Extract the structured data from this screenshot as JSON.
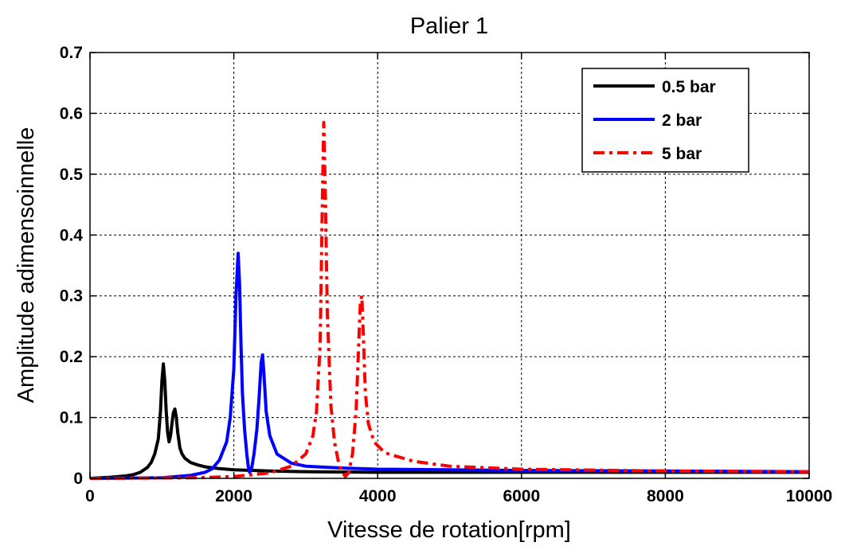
{
  "chart_data": {
    "type": "line",
    "title": "Palier 1",
    "xlabel": "Vitesse de rotation[rpm]",
    "ylabel": "Amplitude adimensoinnelle",
    "xlim": [
      0,
      10000
    ],
    "ylim": [
      0,
      0.7
    ],
    "xticks": [
      0,
      2000,
      4000,
      6000,
      8000,
      10000
    ],
    "yticks": [
      0,
      0.1,
      0.2,
      0.3,
      0.4,
      0.5,
      0.6,
      0.7
    ],
    "xtick_labels": [
      "0",
      "2000",
      "4000",
      "6000",
      "8000",
      "10000"
    ],
    "ytick_labels": [
      "0",
      "0.1",
      "0.2",
      "0.3",
      "0.4",
      "0.5",
      "0.6",
      "0.7"
    ],
    "grid": true,
    "legend_position": "top-right",
    "series": [
      {
        "name": "0.5 bar",
        "color": "#000000",
        "style": "solid",
        "x": [
          0,
          300,
          500,
          600,
          700,
          800,
          850,
          900,
          950,
          980,
          1000,
          1020,
          1040,
          1060,
          1080,
          1100,
          1120,
          1140,
          1160,
          1180,
          1200,
          1220,
          1250,
          1280,
          1320,
          1400,
          1500,
          1600,
          1800,
          2000,
          2500,
          3000,
          4000,
          6000,
          8000,
          10000
        ],
        "y": [
          0,
          0.002,
          0.004,
          0.006,
          0.01,
          0.018,
          0.026,
          0.04,
          0.065,
          0.11,
          0.16,
          0.188,
          0.16,
          0.11,
          0.075,
          0.06,
          0.07,
          0.09,
          0.108,
          0.114,
          0.1,
          0.075,
          0.05,
          0.04,
          0.033,
          0.026,
          0.022,
          0.019,
          0.016,
          0.014,
          0.012,
          0.011,
          0.01,
          0.01,
          0.01,
          0.01
        ]
      },
      {
        "name": "2 bar",
        "color": "#0000ff",
        "style": "solid",
        "x": [
          0,
          1000,
          1400,
          1600,
          1700,
          1800,
          1900,
          1950,
          2000,
          2030,
          2060,
          2080,
          2100,
          2120,
          2150,
          2180,
          2200,
          2220,
          2250,
          2280,
          2320,
          2350,
          2380,
          2400,
          2420,
          2450,
          2500,
          2600,
          2800,
          3000,
          3500,
          4000,
          6000,
          8000,
          10000
        ],
        "y": [
          0,
          0.001,
          0.005,
          0.01,
          0.016,
          0.03,
          0.06,
          0.1,
          0.18,
          0.3,
          0.37,
          0.32,
          0.22,
          0.14,
          0.08,
          0.04,
          0.02,
          0.01,
          0.018,
          0.04,
          0.08,
          0.13,
          0.19,
          0.203,
          0.17,
          0.11,
          0.07,
          0.04,
          0.025,
          0.02,
          0.017,
          0.015,
          0.013,
          0.012,
          0.011
        ]
      },
      {
        "name": "5 bar",
        "color": "#ff0000",
        "style": "dashdot",
        "x": [
          0,
          1500,
          2000,
          2500,
          2800,
          3000,
          3100,
          3150,
          3200,
          3230,
          3250,
          3270,
          3300,
          3350,
          3400,
          3450,
          3500,
          3550,
          3600,
          3650,
          3700,
          3730,
          3760,
          3780,
          3800,
          3830,
          3870,
          3950,
          4100,
          4500,
          5000,
          6000,
          8000,
          10000
        ],
        "y": [
          0,
          0.001,
          0.003,
          0.009,
          0.02,
          0.04,
          0.07,
          0.11,
          0.22,
          0.45,
          0.585,
          0.48,
          0.27,
          0.12,
          0.06,
          0.03,
          0.012,
          0.003,
          0.01,
          0.04,
          0.11,
          0.2,
          0.29,
          0.3,
          0.24,
          0.14,
          0.09,
          0.06,
          0.042,
          0.028,
          0.02,
          0.015,
          0.012,
          0.011
        ]
      }
    ]
  }
}
